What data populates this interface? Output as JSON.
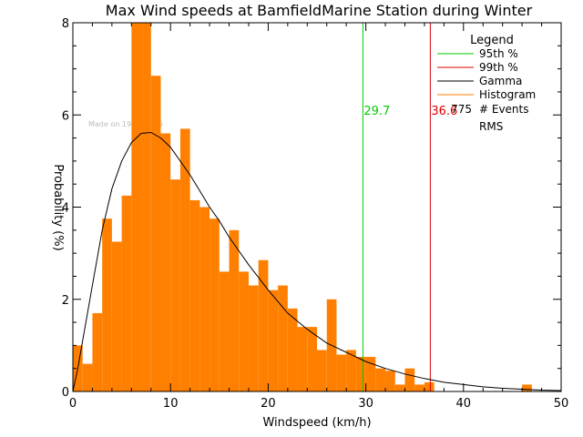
{
  "chart_data": {
    "type": "bar",
    "title": "Max Wind speeds at BamfieldMarine Station during Winter",
    "xlabel": "Windspeed (km/h)",
    "ylabel": "Probability (%)",
    "xlim": [
      0,
      50
    ],
    "ylim": [
      0,
      8
    ],
    "xticks": [
      "0",
      "10",
      "20",
      "30",
      "40",
      "50"
    ],
    "yticks": [
      "0",
      "2",
      "4",
      "6",
      "8"
    ],
    "watermark": "Made on 19 Jul 2025",
    "colors": {
      "histogram": "#ff8000",
      "p95": "#00cc00",
      "p99": "#dd0000",
      "gamma": "#000000"
    },
    "histogram": {
      "bin_width": 1,
      "x_start": 0,
      "values": [
        1.0,
        0.6,
        1.7,
        3.75,
        3.25,
        4.25,
        8.0,
        8.0,
        6.85,
        5.6,
        4.6,
        5.7,
        4.15,
        4.0,
        3.75,
        2.6,
        3.5,
        2.6,
        2.3,
        2.85,
        2.2,
        2.3,
        1.8,
        1.4,
        1.4,
        0.9,
        2.0,
        0.8,
        0.9,
        0.75,
        0.75,
        0.5,
        0.45,
        0.15,
        0.5,
        0.15,
        0.2,
        0.0,
        0.0,
        0.0,
        0.0,
        0.0,
        0.0,
        0.0,
        0.0,
        0.0,
        0.15,
        0.0,
        0.0,
        0.0
      ]
    },
    "gamma_curve": {
      "x": [
        0,
        0.5,
        1,
        2,
        3,
        4,
        5,
        6,
        7,
        8,
        9,
        10,
        11,
        12,
        13,
        14,
        15,
        16,
        18,
        20,
        22,
        24,
        26,
        28,
        30,
        32,
        34,
        36,
        38,
        40,
        42,
        44,
        46,
        48,
        50
      ],
      "y": [
        0,
        0.5,
        1.1,
        2.3,
        3.5,
        4.4,
        5.0,
        5.4,
        5.6,
        5.62,
        5.5,
        5.3,
        5.0,
        4.7,
        4.35,
        4.0,
        3.7,
        3.35,
        2.75,
        2.2,
        1.7,
        1.35,
        1.05,
        0.85,
        0.65,
        0.5,
        0.38,
        0.28,
        0.2,
        0.15,
        0.1,
        0.07,
        0.05,
        0.03,
        0.02
      ]
    },
    "percentile_lines": [
      {
        "x": 29.7,
        "label": "29.7"
      },
      {
        "x": 36.6,
        "label": "36.6"
      }
    ],
    "legend": {
      "title": "Legend",
      "position": "top-right",
      "entries": [
        {
          "label": "95th %",
          "color": "#00cc00"
        },
        {
          "label": "99th %",
          "color": "#dd0000"
        },
        {
          "label": "Gamma",
          "color": "#000000"
        },
        {
          "label": "Histogram",
          "color": "#ff8000"
        }
      ],
      "extra": [
        {
          "label": "# Events",
          "value": "775"
        },
        {
          "label": "RMS",
          "value": ""
        }
      ]
    }
  }
}
